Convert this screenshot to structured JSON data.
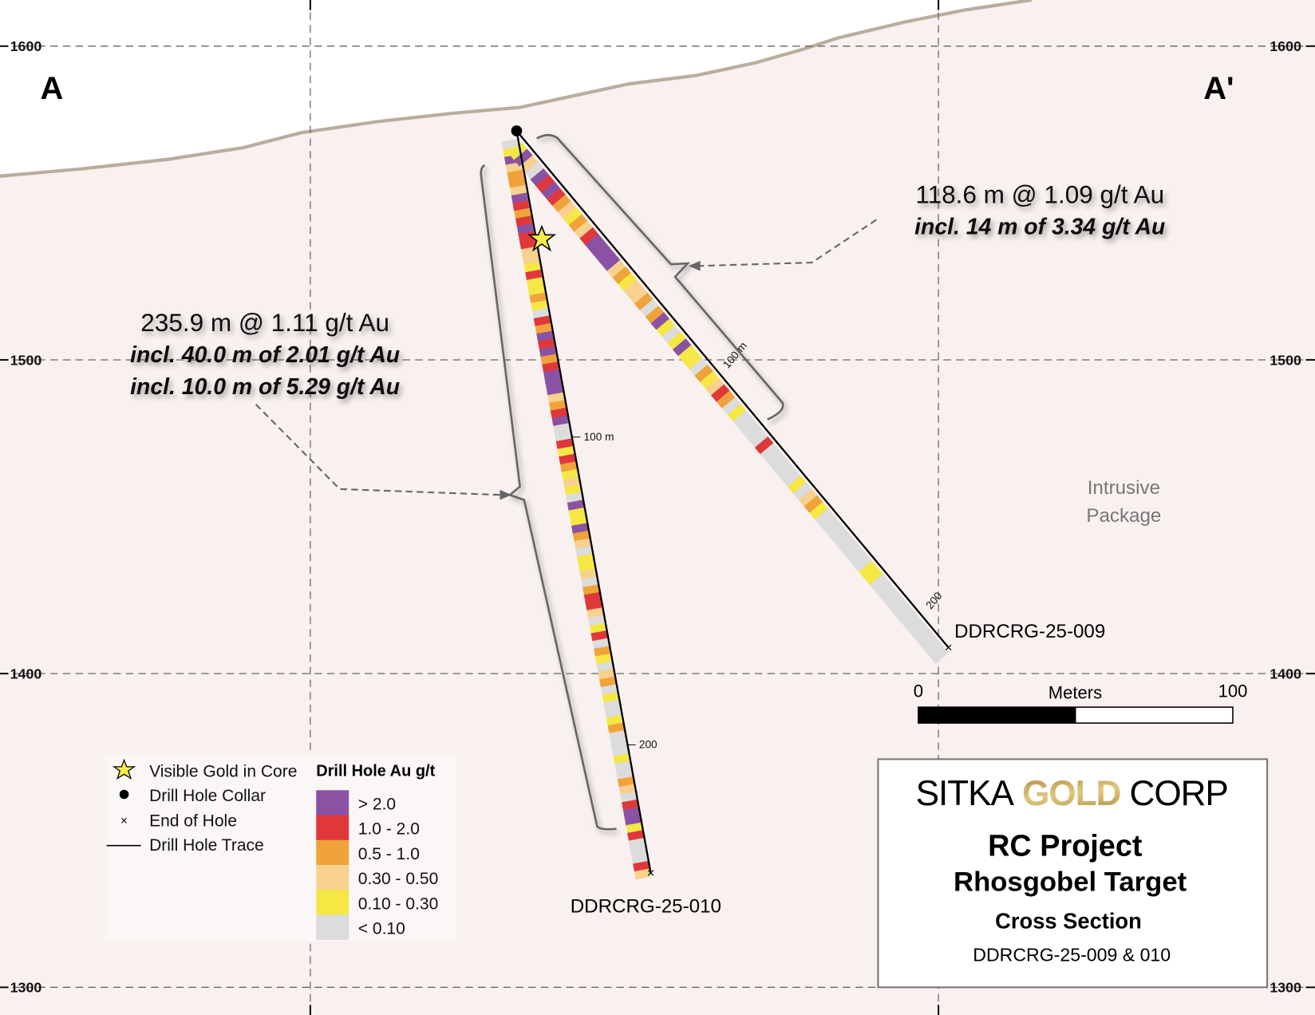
{
  "section": {
    "left_label": "A",
    "right_label": "A'",
    "elevations": [
      "1600",
      "1500",
      "1400",
      "1300"
    ],
    "unit_label": "Intrusive Package",
    "unit_label_lines": [
      "Intrusive",
      "Package"
    ]
  },
  "holes": [
    {
      "name": "DDRCRG-25-010",
      "depth_marks": [
        "100 m",
        "200"
      ],
      "intervals": [
        5,
        4,
        0,
        3,
        2,
        2,
        3,
        0,
        1,
        2,
        1,
        0,
        1,
        1,
        3,
        3,
        4,
        1,
        4,
        4,
        2,
        4,
        5,
        1,
        2,
        0,
        1,
        0,
        2,
        1,
        0,
        0,
        0,
        3,
        2,
        1,
        0,
        5,
        5,
        1,
        4,
        1,
        2,
        4,
        3,
        4,
        5,
        0,
        4,
        4,
        0,
        2,
        3,
        5,
        4,
        4,
        3,
        5,
        2,
        1,
        1,
        3,
        5,
        4,
        1,
        5,
        2,
        4,
        5,
        3,
        2,
        5,
        4,
        5,
        5,
        4,
        2,
        5,
        5,
        5,
        4,
        5,
        5,
        2,
        3,
        5,
        1,
        0,
        0,
        4,
        1,
        5,
        5,
        5,
        1,
        3
      ]
    },
    {
      "name": "DDRCRG-25-009",
      "depth_marks": [
        "100 m",
        "200"
      ],
      "intervals": [
        4,
        0,
        3,
        5,
        0,
        1,
        0,
        1,
        2,
        3,
        4,
        2,
        3,
        1,
        0,
        0,
        0,
        0,
        3,
        2,
        4,
        3,
        3,
        2,
        5,
        2,
        0,
        4,
        5,
        4,
        0,
        4,
        4,
        5,
        2,
        4,
        3,
        1,
        2,
        5,
        4,
        5,
        5,
        5,
        5,
        1,
        5,
        5,
        5,
        5,
        5,
        4,
        5,
        3,
        2,
        4,
        5,
        5,
        5,
        5,
        5,
        5,
        5,
        5,
        4,
        4,
        5,
        5,
        5,
        5,
        5,
        5,
        5,
        5,
        5,
        5,
        5,
        5
      ]
    }
  ],
  "annotations": {
    "hole_010": {
      "headline": "235.9 m @ 1.11 g/t Au",
      "incl": [
        "incl. 40.0 m of 2.01 g/t Au",
        "incl. 10.0 m of 5.29 g/t Au"
      ]
    },
    "hole_009": {
      "headline": "118.6 m @ 1.09 g/t Au",
      "incl": [
        "incl. 14 m of 3.34 g/t Au"
      ]
    }
  },
  "scale_bar": {
    "min": "0",
    "label": "Meters",
    "max": "100"
  },
  "legend": {
    "symbols": [
      {
        "icon": "star-icon",
        "label": "Visible Gold in Core"
      },
      {
        "icon": "dot-icon",
        "label": "Drill Hole Collar"
      },
      {
        "icon": "x-icon",
        "label": "End of Hole"
      },
      {
        "icon": "line-icon",
        "label": "Drill Hole Trace"
      }
    ],
    "grade_title": "Drill Hole Au g/t",
    "grades": [
      {
        "label": "> 2.0",
        "color": "#8b52a3"
      },
      {
        "label": "1.0 - 2.0",
        "color": "#e0383a"
      },
      {
        "label": "0.5 - 1.0",
        "color": "#f0a33b"
      },
      {
        "label": "0.30 - 0.50",
        "color": "#f8d18f"
      },
      {
        "label": "0.10 - 0.30",
        "color": "#f5e845"
      },
      {
        "label": "< 0.10",
        "color": "#dcdcdc"
      }
    ]
  },
  "title_block": {
    "logo": {
      "word1": "SITKA",
      "word2": "GOLD",
      "word3": "CORP"
    },
    "project": "RC Project",
    "target": "Rhosgobel Target",
    "type": "Cross Section",
    "holes": "DDRCRG-25-009 & 010"
  },
  "colors": {
    "background": "#f9f1f0",
    "terrain": "#b9ad9d",
    "gold": "#b8964a"
  }
}
